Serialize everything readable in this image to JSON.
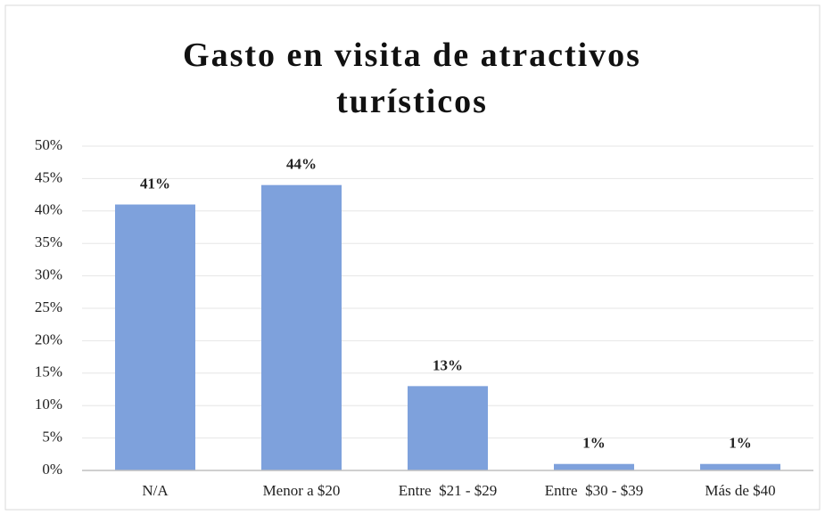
{
  "chart_data": {
    "type": "bar",
    "title": "Gasto en visita de atractivos turísticos",
    "categories": [
      "N/A",
      "Menor a $20",
      "Entre  $21 - $29",
      "Entre  $30 - $39",
      "Más de $40"
    ],
    "values": [
      41,
      44,
      13,
      1,
      1
    ],
    "value_labels": [
      "41%",
      "44%",
      "13%",
      "1%",
      "1%"
    ],
    "color": "#7ea1dc",
    "ylim": [
      0,
      50
    ],
    "yticks": [
      {
        "value": 0,
        "label": "0%"
      },
      {
        "value": 5,
        "label": "5%"
      },
      {
        "value": 10,
        "label": "10%"
      },
      {
        "value": 15,
        "label": "15%"
      },
      {
        "value": 20,
        "label": "20%"
      },
      {
        "value": 25,
        "label": "25%"
      },
      {
        "value": 30,
        "label": "30%"
      },
      {
        "value": 35,
        "label": "35%"
      },
      {
        "value": 40,
        "label": "40%"
      },
      {
        "value": 45,
        "label": "45%"
      },
      {
        "value": 50,
        "label": "50%"
      }
    ],
    "grid": true
  }
}
